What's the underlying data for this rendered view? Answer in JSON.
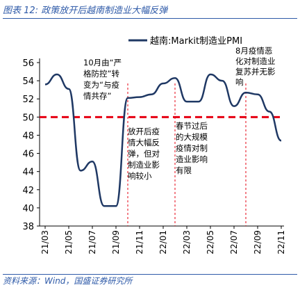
{
  "title": "图表 12: 政策放开后越南制造业大幅反弹",
  "source": "资料来源：Wind，国盛证券研究所",
  "colors": {
    "series": "#1f3864",
    "reference": "#e60012",
    "accent": "#2e5aa8"
  },
  "chart_data": {
    "type": "line",
    "legend_position": "top-right",
    "grid": false,
    "ylim": [
      38,
      56
    ],
    "y_ticks": [
      "38",
      "40",
      "42",
      "44",
      "46",
      "48",
      "50",
      "52",
      "54",
      "56"
    ],
    "x_tick_labels": [
      "21/03",
      "21/05",
      "21/07",
      "21/09",
      "21/11",
      "22/01",
      "22/03",
      "22/05",
      "22/07",
      "22/09",
      "22/11"
    ],
    "x": [
      "21/03",
      "21/04",
      "21/05",
      "21/06",
      "21/07",
      "21/08",
      "21/09",
      "21/10",
      "21/11",
      "21/12",
      "22/01",
      "22/02",
      "22/03",
      "22/04",
      "22/05",
      "22/06",
      "22/07",
      "22/08",
      "22/09",
      "22/10",
      "22/11"
    ],
    "series": [
      {
        "name": "越南:Markit制造业PMI",
        "values": [
          53.6,
          54.7,
          53.1,
          44.1,
          45.1,
          40.2,
          40.2,
          52.1,
          52.2,
          52.5,
          53.7,
          54.3,
          51.7,
          51.7,
          54.7,
          54.0,
          51.2,
          52.7,
          52.5,
          50.6,
          47.4
        ]
      }
    ],
    "reference_line": 50,
    "markers": [
      "21/10",
      "22/02",
      "22/08"
    ],
    "annotations": [
      {
        "lines": [
          "10月由“严",
          "格防控”转",
          "变为“与疫",
          "情共存”"
        ]
      },
      {
        "lines": [
          "放开后疫",
          "情大幅反",
          "弹，但对",
          "制造业影",
          "响较小"
        ]
      },
      {
        "lines": [
          "春节过后",
          "的大规模",
          "疫情对制",
          "造业影响",
          "有限"
        ]
      },
      {
        "lines": [
          "8月疫情恶",
          "化对制造业",
          "复苏并无影",
          "响"
        ]
      }
    ]
  }
}
